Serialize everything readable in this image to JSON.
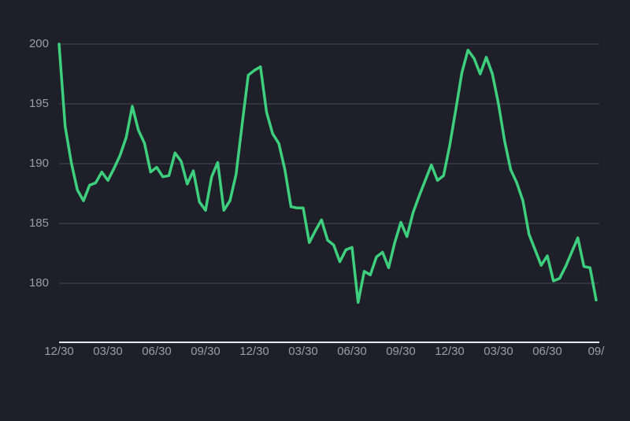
{
  "chart_data": {
    "type": "line",
    "categories": [
      "12/30",
      null,
      null,
      null,
      null,
      null,
      null,
      null,
      "03/30",
      null,
      null,
      null,
      null,
      null,
      null,
      null,
      "06/30",
      null,
      null,
      null,
      null,
      null,
      null,
      null,
      "09/30",
      null,
      null,
      null,
      null,
      null,
      null,
      null,
      "12/30",
      null,
      null,
      null,
      null,
      null,
      null,
      null,
      "03/30",
      null,
      null,
      null,
      null,
      null,
      null,
      null,
      "06/30",
      null,
      null,
      null,
      null,
      null,
      null,
      null,
      "09/30",
      null,
      null,
      null,
      null,
      null,
      null,
      null,
      "12/30",
      null,
      null,
      null,
      null,
      null,
      null,
      null,
      "03/30",
      null,
      null,
      null,
      null,
      null,
      null,
      null,
      "06/30",
      null,
      null,
      null,
      null,
      null,
      null,
      null,
      "09/"
    ],
    "values": [
      200.0,
      193.1,
      190.1,
      187.8,
      186.9,
      188.2,
      188.4,
      189.3,
      188.6,
      189.6,
      190.7,
      192.2,
      194.8,
      192.8,
      191.7,
      189.3,
      189.7,
      188.9,
      189.0,
      190.9,
      190.2,
      188.3,
      189.4,
      186.8,
      186.1,
      188.9,
      190.1,
      186.1,
      186.9,
      189.1,
      193.3,
      197.4,
      197.8,
      198.1,
      194.3,
      192.5,
      191.7,
      189.5,
      186.4,
      186.3,
      186.3,
      183.4,
      184.4,
      185.3,
      183.6,
      183.2,
      181.8,
      182.8,
      183.0,
      178.4,
      181.0,
      180.7,
      182.2,
      182.6,
      181.3,
      183.4,
      185.1,
      183.9,
      185.9,
      187.3,
      188.6,
      189.9,
      188.6,
      189.0,
      191.5,
      194.5,
      197.6,
      199.5,
      198.8,
      197.5,
      198.9,
      197.5,
      195.0,
      191.9,
      189.5,
      188.4,
      186.9,
      184.1,
      182.8,
      181.5,
      182.3,
      180.2,
      180.4,
      181.4,
      182.6,
      183.8,
      181.4,
      181.3,
      178.6
    ],
    "color": "#3ecf7e",
    "ylim": [
      175,
      200
    ],
    "yticks": [
      180,
      185,
      190,
      195,
      200
    ],
    "grid": true
  }
}
